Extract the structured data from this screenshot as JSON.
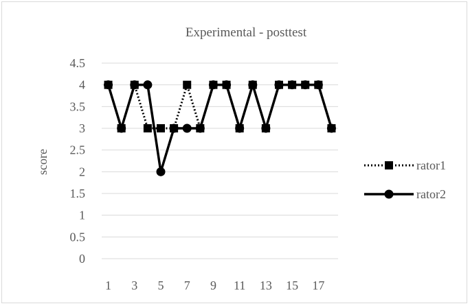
{
  "chart_data": {
    "type": "line",
    "title": "Experimental - posttest",
    "xlabel": "",
    "ylabel": "score",
    "x": [
      1,
      2,
      3,
      4,
      5,
      6,
      7,
      8,
      9,
      10,
      11,
      12,
      13,
      14,
      15,
      16,
      17,
      18
    ],
    "x_tick_labels": [
      "1",
      "3",
      "5",
      "7",
      "9",
      "11",
      "13",
      "15",
      "17"
    ],
    "y_tick_labels": [
      "0",
      "0.5",
      "1",
      "1.5",
      "2",
      "2.5",
      "3",
      "3.5",
      "4",
      "4.5"
    ],
    "ylim": [
      0,
      4.5
    ],
    "grid": true,
    "legend_position": "right",
    "series": [
      {
        "name": "rator1",
        "values": [
          4,
          3,
          4,
          3,
          3,
          3,
          4,
          3,
          4,
          4,
          3,
          4,
          3,
          4,
          4,
          4,
          4,
          3
        ],
        "line_style": "dotted",
        "marker": "square",
        "color": "#000000"
      },
      {
        "name": "rator2",
        "values": [
          4,
          3,
          4,
          4,
          2,
          3,
          3,
          3,
          4,
          4,
          3,
          4,
          3,
          4,
          4,
          4,
          4,
          3
        ],
        "line_style": "solid",
        "marker": "circle",
        "color": "#000000"
      }
    ],
    "colors": {
      "gridline": "#d9d9d9",
      "text": "#595959",
      "series": "#000000"
    }
  }
}
